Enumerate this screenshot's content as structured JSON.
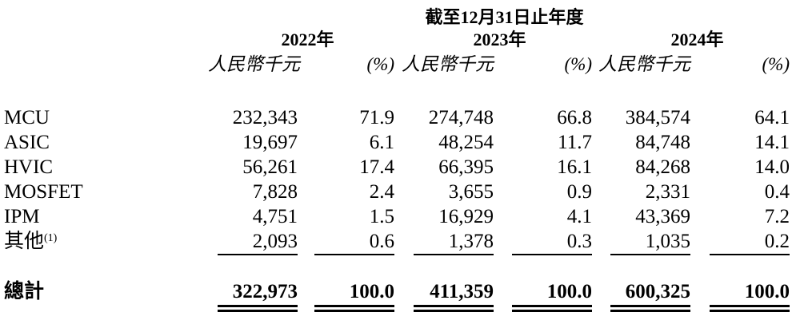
{
  "table": {
    "title": "截至12月31日止年度",
    "years": [
      "2022年",
      "2023年",
      "2024年"
    ],
    "subheaders": {
      "amount": "人民幣千元",
      "percent": "(%)"
    },
    "rows": [
      {
        "label": "MCU",
        "values": [
          "232,343",
          "71.9",
          "274,748",
          "66.8",
          "384,574",
          "64.1"
        ]
      },
      {
        "label": "ASIC",
        "values": [
          "19,697",
          "6.1",
          "48,254",
          "11.7",
          "84,748",
          "14.1"
        ]
      },
      {
        "label": "HVIC",
        "values": [
          "56,261",
          "17.4",
          "66,395",
          "16.1",
          "84,268",
          "14.0"
        ]
      },
      {
        "label": "MOSFET",
        "values": [
          "7,828",
          "2.4",
          "3,655",
          "0.9",
          "2,331",
          "0.4"
        ]
      },
      {
        "label": "IPM",
        "values": [
          "4,751",
          "1.5",
          "16,929",
          "4.1",
          "43,369",
          "7.2"
        ]
      },
      {
        "label": "其他",
        "footnote": "(1)",
        "values": [
          "2,093",
          "0.6",
          "1,378",
          "0.3",
          "1,035",
          "0.2"
        ]
      }
    ],
    "total": {
      "label": "總計",
      "values": [
        "322,973",
        "100.0",
        "411,359",
        "100.0",
        "600,325",
        "100.0"
      ]
    }
  },
  "colors": {
    "text": "#000000",
    "background": "#ffffff"
  }
}
